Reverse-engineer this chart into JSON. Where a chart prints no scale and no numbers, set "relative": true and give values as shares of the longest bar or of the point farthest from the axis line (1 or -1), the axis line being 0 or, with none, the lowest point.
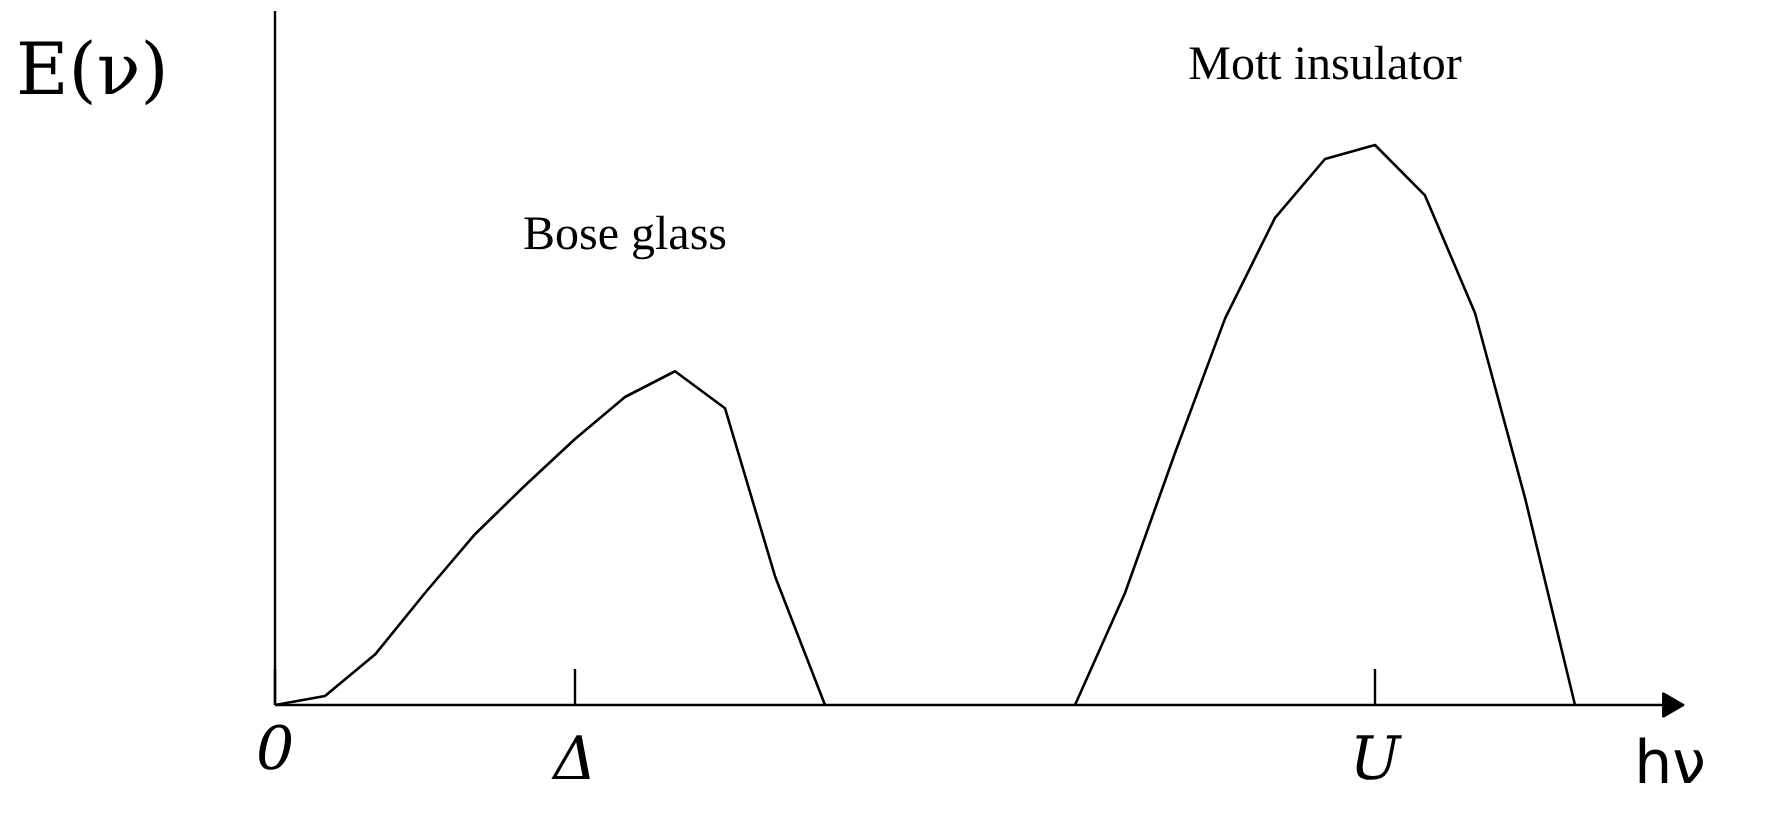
{
  "chart_data": {
    "type": "line",
    "relative": true,
    "xlabel": "hν",
    "ylabel": "E(ν)",
    "legend": false,
    "grid": false,
    "marker": "none",
    "line_style": "solid",
    "categories": [
      "0",
      null,
      null,
      null,
      null,
      null,
      "Δ",
      null,
      null,
      null,
      null,
      null,
      null,
      null,
      null,
      null,
      null,
      null,
      null,
      null,
      null,
      null,
      "U",
      null,
      null,
      null,
      null,
      null
    ],
    "series": [
      {
        "name": "Bose glass",
        "color": "#000000",
        "values": [
          0,
          0.016,
          0.09,
          0.2,
          0.305,
          0.392,
          0.475,
          0.55,
          0.596,
          0.53,
          0.23,
          0,
          null,
          null,
          null,
          null,
          null,
          null,
          null,
          null,
          null,
          null,
          null,
          null,
          null,
          null,
          null,
          null
        ]
      },
      {
        "name": "Mott insulator",
        "color": "#000000",
        "values": [
          null,
          null,
          null,
          null,
          null,
          null,
          null,
          null,
          null,
          null,
          null,
          null,
          null,
          null,
          null,
          null,
          0,
          0.2,
          0.45,
          0.69,
          0.87,
          0.975,
          1,
          0.91,
          0.7,
          0.37,
          0,
          null
        ]
      }
    ]
  }
}
